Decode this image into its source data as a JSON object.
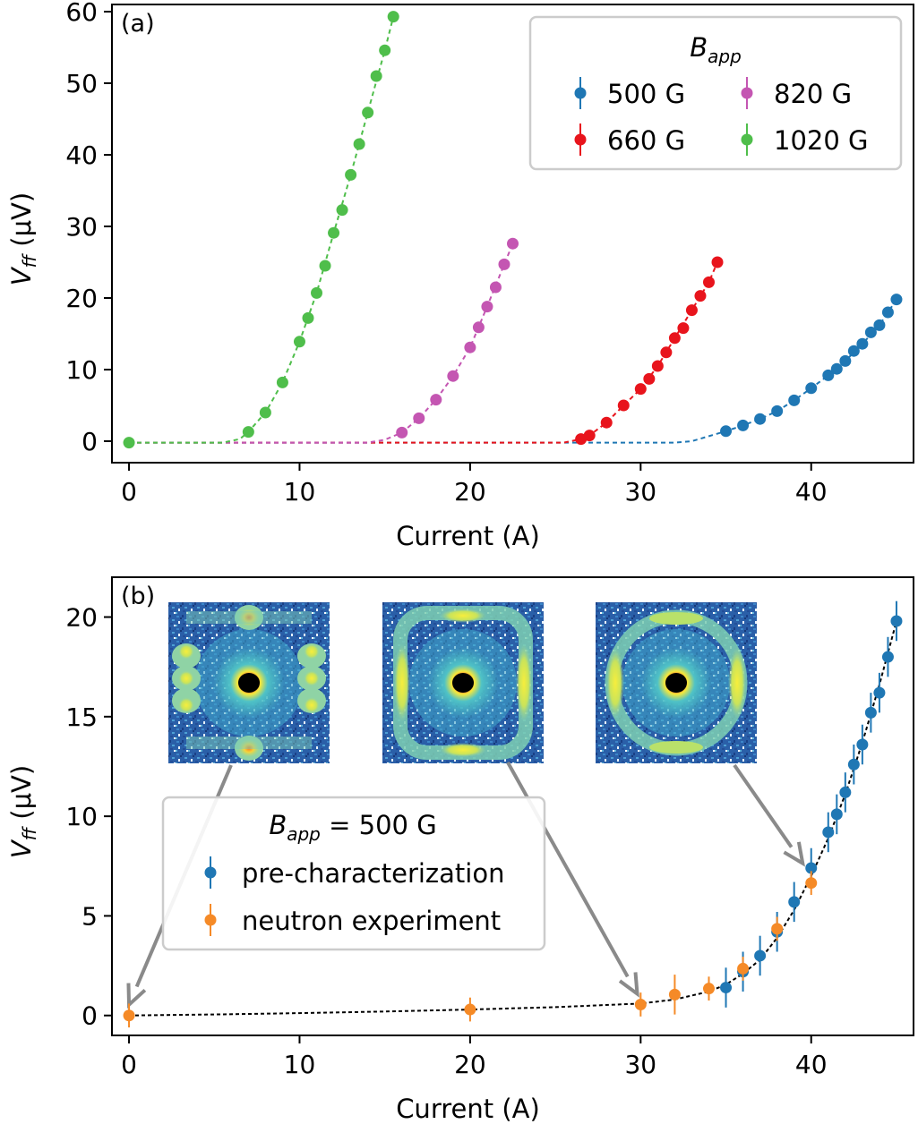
{
  "chart_data": [
    {
      "type": "scatter",
      "panel_label": "(a)",
      "xlabel": "Current (A)",
      "ylabel_main": "V",
      "ylabel_sub": "ff",
      "ylabel_unit": " (μV)",
      "xlim": [
        -1,
        46
      ],
      "ylim": [
        -3,
        61
      ],
      "xticks": [
        0,
        10,
        20,
        30,
        40
      ],
      "yticks": [
        0,
        10,
        20,
        30,
        40,
        50,
        60
      ],
      "legend": {
        "title_main": "B",
        "title_sub": "app",
        "placement": "top-right"
      },
      "series": [
        {
          "name": "500 G",
          "color": "#1f77b4",
          "x": [
            35,
            36,
            37,
            38,
            39,
            40,
            41,
            41.5,
            42,
            42.5,
            43,
            43.5,
            44,
            44.5,
            45
          ],
          "y": [
            1.4,
            2.2,
            3.1,
            4.2,
            5.7,
            7.4,
            9.2,
            10.1,
            11.2,
            12.6,
            13.6,
            15.2,
            16.2,
            18.0,
            19.8
          ],
          "fit": [
            [
              0,
              -0.2
            ],
            [
              32,
              -0.2
            ],
            [
              33,
              0.0
            ],
            [
              35,
              1.4
            ],
            [
              36,
              2.2
            ],
            [
              37,
              3.1
            ],
            [
              38,
              4.2
            ],
            [
              39,
              5.7
            ],
            [
              40,
              7.4
            ],
            [
              41,
              9.2
            ],
            [
              42,
              11.2
            ],
            [
              43,
              13.6
            ],
            [
              44,
              16.2
            ],
            [
              45,
              19.8
            ]
          ]
        },
        {
          "name": "660 G",
          "color": "#e8141c",
          "x": [
            26.5,
            27,
            28,
            29,
            30,
            30.5,
            31,
            31.5,
            32,
            32.5,
            33,
            33.5,
            34,
            34.5
          ],
          "y": [
            0.3,
            0.8,
            2.6,
            5.0,
            7.3,
            8.7,
            10.5,
            12.4,
            14.4,
            15.8,
            18.3,
            20.3,
            22.2,
            25.0
          ],
          "fit": [
            [
              0,
              -0.2
            ],
            [
              25.5,
              -0.2
            ],
            [
              26.5,
              0.3
            ],
            [
              27,
              0.8
            ],
            [
              28,
              2.6
            ],
            [
              29,
              5.0
            ],
            [
              30,
              7.3
            ],
            [
              31,
              10.5
            ],
            [
              32,
              14.4
            ],
            [
              33,
              18.3
            ],
            [
              34,
              22.2
            ],
            [
              34.5,
              25.0
            ]
          ]
        },
        {
          "name": "820 G",
          "color": "#c456b2",
          "x": [
            16,
            17,
            18,
            19,
            20,
            20.5,
            21,
            21.5,
            22,
            22.5
          ],
          "y": [
            1.2,
            3.2,
            5.8,
            9.1,
            13.1,
            15.9,
            18.8,
            21.5,
            24.7,
            27.6
          ],
          "fit": [
            [
              0,
              -0.2
            ],
            [
              14,
              -0.2
            ],
            [
              15,
              0.2
            ],
            [
              16,
              1.2
            ],
            [
              17,
              3.2
            ],
            [
              18,
              5.8
            ],
            [
              19,
              9.1
            ],
            [
              20,
              13.1
            ],
            [
              21,
              18.8
            ],
            [
              22,
              24.7
            ],
            [
              22.5,
              27.6
            ]
          ]
        },
        {
          "name": "1020 G",
          "color": "#4fbe4b",
          "x": [
            0,
            7,
            8,
            9,
            10,
            10.5,
            11,
            11.5,
            12,
            12.5,
            13,
            13.5,
            14,
            14.5,
            15,
            15.5
          ],
          "y": [
            -0.2,
            1.3,
            4.0,
            8.2,
            13.9,
            17.2,
            20.7,
            24.5,
            29.1,
            32.3,
            37.2,
            41.5,
            45.9,
            51.0,
            54.6,
            59.3
          ],
          "fit": [
            [
              0,
              -0.2
            ],
            [
              5.5,
              -0.2
            ],
            [
              6.5,
              0.3
            ],
            [
              7,
              1.3
            ],
            [
              8,
              4.0
            ],
            [
              9,
              8.2
            ],
            [
              10,
              13.9
            ],
            [
              11,
              20.7
            ],
            [
              12,
              29.1
            ],
            [
              13,
              37.2
            ],
            [
              14,
              45.9
            ],
            [
              15,
              54.6
            ],
            [
              15.5,
              59.3
            ]
          ]
        }
      ]
    },
    {
      "type": "scatter",
      "panel_label": "(b)",
      "xlabel": "Current (A)",
      "ylabel_main": "V",
      "ylabel_sub": "ff",
      "ylabel_unit": " (μV)",
      "xlim": [
        -1,
        46
      ],
      "ylim": [
        -1,
        22
      ],
      "xticks": [
        0,
        10,
        20,
        30,
        40
      ],
      "yticks": [
        0,
        5,
        10,
        15,
        20
      ],
      "legend": {
        "title_main": "B",
        "title_sub": "app",
        "title_suffix": " = 500 G",
        "placement": "center-left"
      },
      "series": [
        {
          "name": "pre-characterization",
          "color": "#1f77b4",
          "x": [
            35,
            36,
            37,
            38,
            39,
            40,
            41,
            41.5,
            42,
            42.5,
            43,
            43.5,
            44,
            44.5,
            45
          ],
          "y": [
            1.4,
            2.2,
            3.0,
            4.2,
            5.7,
            7.4,
            9.2,
            10.1,
            11.2,
            12.6,
            13.6,
            15.2,
            16.2,
            18.0,
            19.8
          ],
          "err": [
            1.0,
            1.0,
            1.0,
            1.0,
            1.0,
            1.0,
            1.0,
            1.0,
            1.0,
            1.0,
            1.0,
            1.0,
            1.0,
            1.0,
            1.0
          ]
        },
        {
          "name": "neutron experiment",
          "color": "#f58a27",
          "x": [
            0,
            20,
            30,
            32,
            34,
            36,
            38,
            40
          ],
          "y": [
            0.0,
            0.3,
            0.55,
            1.05,
            1.35,
            2.35,
            4.35,
            6.65
          ],
          "err": [
            0.6,
            0.6,
            0.6,
            1.0,
            0.6,
            0.6,
            0.6,
            0.6
          ]
        }
      ],
      "fit": [
        [
          0,
          0.0
        ],
        [
          5,
          0.05
        ],
        [
          10,
          0.12
        ],
        [
          15,
          0.2
        ],
        [
          20,
          0.3
        ],
        [
          25,
          0.42
        ],
        [
          30,
          0.6
        ],
        [
          32,
          0.8
        ],
        [
          34,
          1.2
        ],
        [
          35,
          1.55
        ],
        [
          36,
          2.1
        ],
        [
          37,
          2.8
        ],
        [
          38,
          3.9
        ],
        [
          39,
          5.3
        ],
        [
          40,
          7.0
        ],
        [
          41,
          8.9
        ],
        [
          42,
          11.1
        ],
        [
          43,
          13.7
        ],
        [
          44,
          16.6
        ],
        [
          45,
          19.8
        ]
      ],
      "insets": [
        {
          "name": "inset-pattern-30A",
          "style": "spots",
          "arrow_to": [
            0,
            0
          ]
        },
        {
          "name": "inset-pattern-20A",
          "style": "ring-square",
          "arrow_to": [
            29.8,
            0.55
          ]
        },
        {
          "name": "inset-pattern-40A",
          "style": "ring-round",
          "arrow_to": [
            39.5,
            7.1
          ]
        }
      ]
    }
  ]
}
